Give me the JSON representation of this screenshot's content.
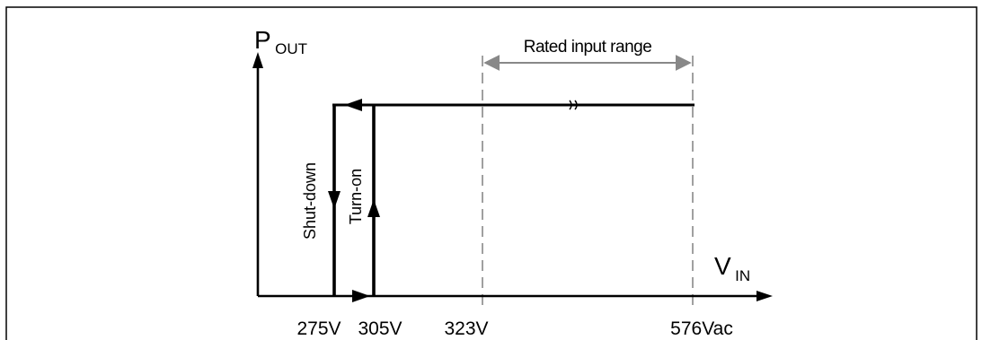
{
  "diagram": {
    "y_axis": {
      "label_main": "P",
      "label_sub": "OUT"
    },
    "x_axis": {
      "label_main": "V",
      "label_sub": "IN"
    },
    "range": {
      "label": "Rated input range"
    },
    "curve": {
      "shutdown_label": "Shut-down",
      "turnon_label": "Turn-on"
    },
    "ticks": [
      {
        "label": "275V"
      },
      {
        "label": "305V"
      },
      {
        "label": "323V"
      },
      {
        "label": "576Vac"
      }
    ],
    "colors": {
      "line": "#000000",
      "guide": "#888888",
      "frame": "#000000"
    }
  }
}
